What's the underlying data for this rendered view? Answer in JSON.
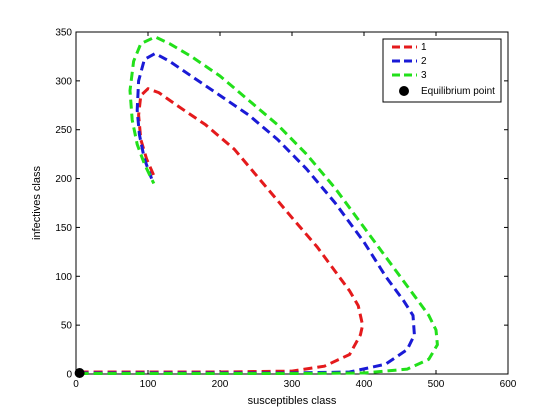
{
  "chart_data": {
    "type": "line",
    "xlabel": "susceptibles class",
    "ylabel": "infectives class",
    "xlim": [
      0,
      600
    ],
    "ylim": [
      0,
      350
    ],
    "xticks": [
      0,
      100,
      200,
      300,
      400,
      500,
      600
    ],
    "yticks": [
      0,
      50,
      100,
      150,
      200,
      250,
      300,
      350
    ],
    "grid": false,
    "legend_position": "top-right",
    "series": [
      {
        "name": "1",
        "color": "#e41a1c",
        "x": [
          5,
          100,
          200,
          300,
          345,
          380,
          395,
          398,
          392,
          380,
          360,
          335,
          300,
          260,
          220,
          180,
          140,
          115,
          100,
          90,
          87,
          90,
          98,
          110
        ],
        "y": [
          2,
          2,
          2,
          3,
          8,
          20,
          40,
          50,
          70,
          85,
          105,
          130,
          160,
          195,
          230,
          255,
          275,
          288,
          292,
          285,
          265,
          240,
          220,
          200
        ]
      },
      {
        "name": "2",
        "color": "#1a1ad6",
        "x": [
          5,
          100,
          200,
          300,
          380,
          430,
          460,
          470,
          468,
          455,
          430,
          400,
          360,
          320,
          280,
          240,
          200,
          160,
          130,
          110,
          95,
          87,
          85,
          88,
          95,
          105
        ],
        "y": [
          1,
          1,
          1,
          1,
          2,
          10,
          25,
          40,
          60,
          75,
          100,
          135,
          175,
          210,
          240,
          265,
          285,
          305,
          320,
          328,
          322,
          300,
          270,
          245,
          220,
          200
        ]
      },
      {
        "name": "3",
        "color": "#22e01a",
        "x": [
          5,
          100,
          200,
          300,
          400,
          460,
          490,
          502,
          500,
          490,
          470,
          440,
          400,
          360,
          320,
          280,
          240,
          200,
          160,
          130,
          110,
          90,
          80,
          75,
          78,
          85,
          95,
          108
        ],
        "y": [
          0.5,
          0.5,
          0.5,
          0.5,
          1,
          5,
          15,
          30,
          45,
          60,
          80,
          110,
          150,
          190,
          225,
          255,
          280,
          305,
          325,
          338,
          345,
          338,
          320,
          290,
          260,
          235,
          215,
          195
        ]
      }
    ],
    "equilibrium_point": {
      "name": "Equilibrium point",
      "x": 5,
      "y": 1,
      "color": "#000000"
    }
  }
}
